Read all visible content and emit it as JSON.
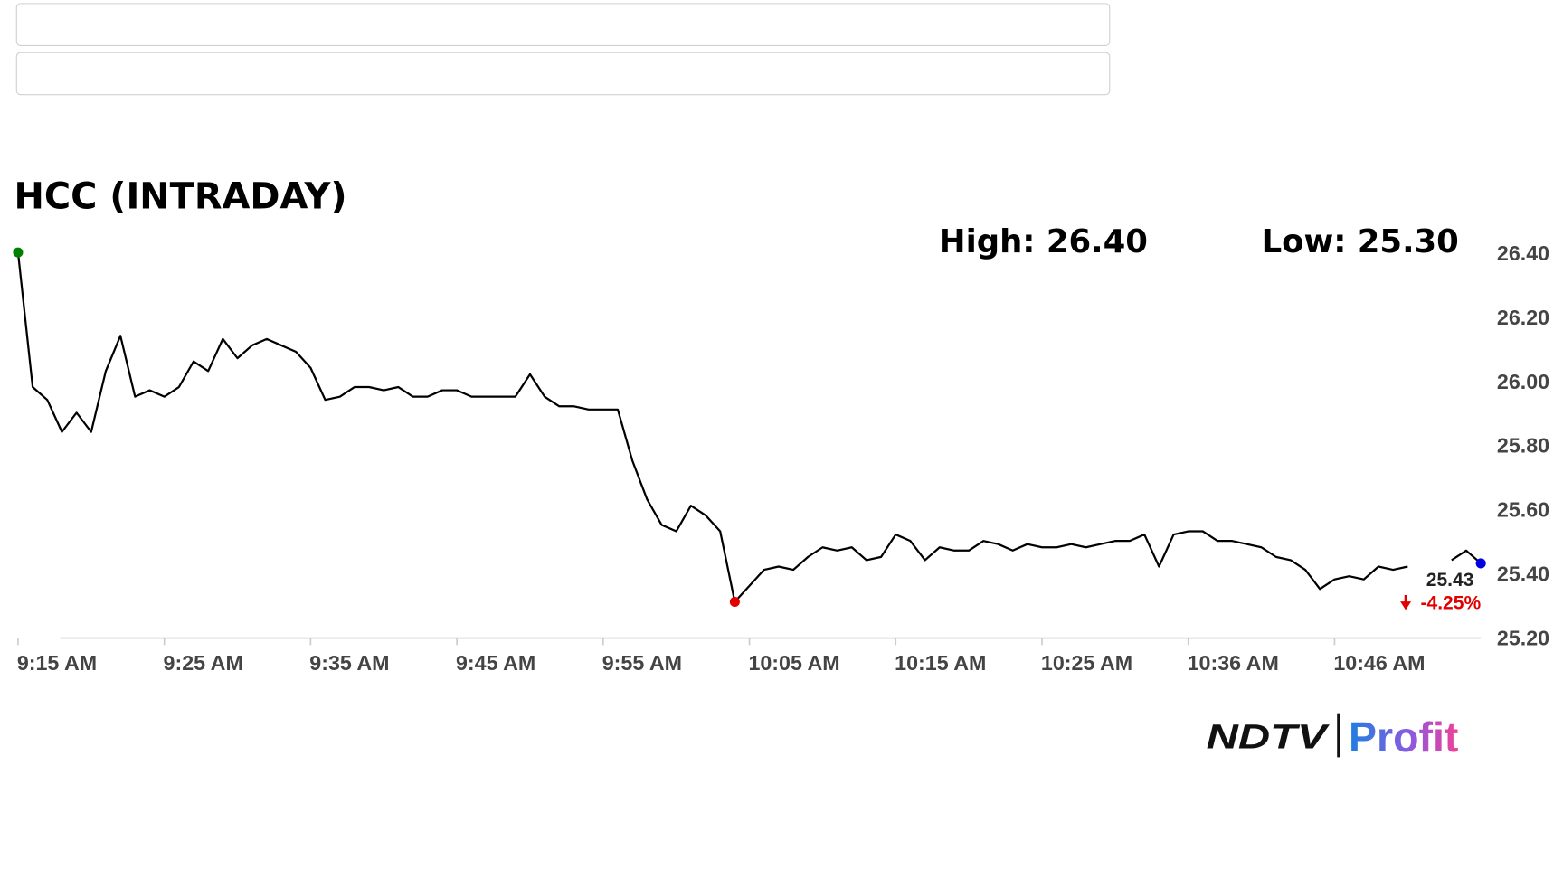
{
  "chart_data": {
    "type": "line",
    "title": "HCC (INTRADAY)",
    "high_label": "High: 26.40",
    "low_label": "Low: 25.30",
    "last_label": "25.43",
    "change_label": "-4.25%",
    "color": "#000000",
    "first_color": "#008000",
    "low_color": "#e00000",
    "last_color": "#0000e0",
    "change_color": "#e00000",
    "xlim": [
      0,
      100
    ],
    "xticks": [
      {
        "value": 0,
        "label": "9:15 AM"
      },
      {
        "value": 10,
        "label": "9:25 AM"
      },
      {
        "value": 20,
        "label": "9:35 AM"
      },
      {
        "value": 30,
        "label": "9:45 AM"
      },
      {
        "value": 40,
        "label": "9:55 AM"
      },
      {
        "value": 50,
        "label": "10:05 AM"
      },
      {
        "value": 60,
        "label": "10:15 AM"
      },
      {
        "value": 70,
        "label": "10:25 AM"
      },
      {
        "value": 80,
        "label": "10:36 AM"
      },
      {
        "value": 90,
        "label": "10:46 AM"
      }
    ],
    "ylim": [
      25.2,
      26.4
    ],
    "yticks": [
      {
        "value": 25.2,
        "label": "25.20"
      },
      {
        "value": 25.4,
        "label": "25.40"
      },
      {
        "value": 25.6,
        "label": "25.60"
      },
      {
        "value": 25.8,
        "label": "25.80"
      },
      {
        "value": 26.0,
        "label": "26.00"
      },
      {
        "value": 26.2,
        "label": "26.20"
      },
      {
        "value": 26.4,
        "label": "26.40"
      }
    ],
    "values": [
      26.4,
      25.98,
      25.94,
      25.84,
      25.9,
      25.84,
      26.03,
      26.14,
      25.95,
      25.97,
      25.95,
      25.98,
      26.06,
      26.03,
      26.13,
      26.07,
      26.11,
      26.13,
      26.11,
      26.09,
      26.04,
      25.94,
      25.95,
      25.98,
      25.98,
      25.97,
      25.98,
      25.95,
      25.95,
      25.97,
      25.97,
      25.95,
      25.95,
      25.95,
      25.95,
      26.02,
      25.95,
      25.92,
      25.92,
      25.91,
      25.91,
      25.91,
      25.75,
      25.63,
      25.55,
      25.53,
      25.61,
      25.58,
      25.53,
      25.31,
      25.36,
      25.41,
      25.42,
      25.41,
      25.45,
      25.48,
      25.47,
      25.48,
      25.44,
      25.45,
      25.52,
      25.5,
      25.44,
      25.48,
      25.47,
      25.47,
      25.5,
      25.49,
      25.47,
      25.49,
      25.48,
      25.48,
      25.49,
      25.48,
      25.49,
      25.5,
      25.5,
      25.52,
      25.42,
      25.52,
      25.53,
      25.53,
      25.5,
      25.5,
      25.49,
      25.48,
      25.45,
      25.44,
      25.41,
      25.35,
      25.38,
      25.39,
      25.38,
      25.42,
      25.41,
      25.42,
      null,
      null,
      25.44,
      25.47,
      25.43
    ]
  },
  "logo": {
    "left": "NDTV",
    "right": "Profit"
  }
}
